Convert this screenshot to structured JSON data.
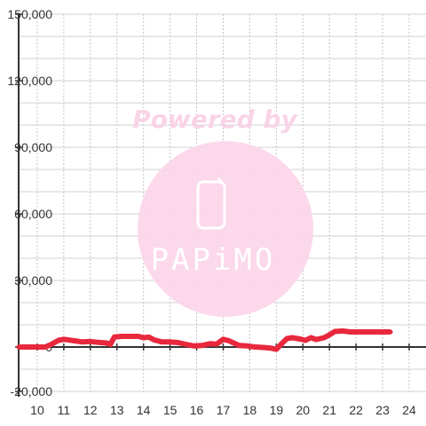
{
  "chart_data": {
    "type": "line",
    "title": "",
    "xlabel": "",
    "ylabel": "",
    "xlim": [
      9.3,
      24.3
    ],
    "ylim": [
      -20000,
      150000
    ],
    "x_ticks": [
      10,
      11,
      12,
      13,
      14,
      15,
      16,
      17,
      18,
      19,
      20,
      21,
      22,
      23,
      24
    ],
    "y_ticks": [
      -20000,
      0,
      30000,
      60000,
      90000,
      120000,
      150000
    ],
    "x_tick_labels": [
      "10",
      "11",
      "12",
      "13",
      "14",
      "15",
      "16",
      "17",
      "18",
      "19",
      "20",
      "21",
      "22",
      "23",
      "24"
    ],
    "y_tick_labels": [
      "-20,000",
      "0",
      "30,000",
      "60,000",
      "90,000",
      "120,000",
      "150,000"
    ],
    "grid": true,
    "series": [
      {
        "color": "#e8283c",
        "x": [
          9.3,
          10.0,
          10.3,
          10.5,
          10.8,
          11.0,
          11.4,
          11.7,
          12.0,
          12.3,
          12.6,
          12.75,
          12.9,
          13.2,
          13.5,
          13.8,
          14.0,
          14.2,
          14.4,
          14.7,
          15.0,
          15.3,
          15.6,
          15.9,
          16.2,
          16.5,
          16.75,
          17.0,
          17.2,
          17.4,
          17.6,
          17.9,
          18.2,
          18.5,
          18.8,
          19.0,
          19.2,
          19.4,
          19.6,
          19.9,
          20.1,
          20.3,
          20.5,
          20.8,
          21.0,
          21.2,
          21.5,
          21.8,
          22.1,
          22.4,
          22.7,
          23.0,
          23.3
        ],
        "y": [
          0,
          0,
          0,
          1000,
          3000,
          3500,
          2800,
          2300,
          2500,
          2100,
          1800,
          1200,
          4500,
          4800,
          4800,
          4800,
          4200,
          4500,
          3200,
          2300,
          2300,
          2000,
          1200,
          500,
          700,
          1500,
          1300,
          3500,
          2900,
          1800,
          700,
          500,
          0,
          -200,
          -500,
          -1000,
          1500,
          3800,
          4200,
          3600,
          3000,
          4200,
          3400,
          4200,
          5500,
          7000,
          7200,
          6800,
          6800,
          6800,
          6800,
          6800,
          6800
        ]
      }
    ]
  },
  "watermark": {
    "line1": "Powered by",
    "brand": "PAPiMO",
    "circle_color": "#fcd6ea"
  }
}
